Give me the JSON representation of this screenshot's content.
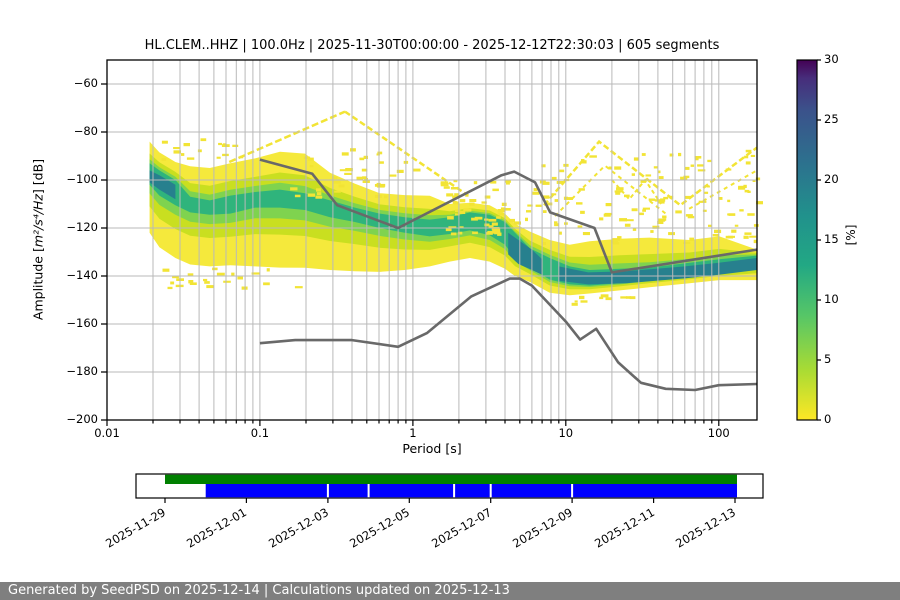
{
  "figure_title": "HL.CLEM..HHZ | 100.0Hz | 2025-11-30T00:00:00 - 2025-12-12T22:30:03 | 605 segments",
  "footer": {
    "text": "Generated by SeedPSD on 2025-12-14 | Calculations updated on 2025-12-13"
  },
  "axes": {
    "xlabel": "Period [s]",
    "ylabel_prefix": "Amplitude [",
    "ylabel_math": "m²/s⁴/Hz",
    "ylabel_suffix": "] [dB]",
    "x_tick_values": [
      0.01,
      0.1,
      1,
      10,
      100
    ],
    "x_tick_labels": [
      "0.01",
      "0.1",
      "1",
      "10",
      "100"
    ],
    "y_tick_values": [
      -60,
      -80,
      -100,
      -120,
      -140,
      -160,
      -180,
      -200
    ],
    "y_tick_labels": [
      "−60",
      "−80",
      "−100",
      "−120",
      "−140",
      "−160",
      "−180",
      "−200"
    ]
  },
  "colorbar": {
    "label": "[%]",
    "min": 0,
    "max": 30,
    "tick_values": [
      0,
      5,
      10,
      15,
      20,
      25,
      30
    ],
    "tick_labels": [
      "0",
      "5",
      "10",
      "15",
      "20",
      "25",
      "30"
    ],
    "gradient": [
      [
        0,
        "#fde725"
      ],
      [
        0.14,
        "#a8db34"
      ],
      [
        0.29,
        "#56c667"
      ],
      [
        0.43,
        "#22a884"
      ],
      [
        0.57,
        "#21918c"
      ],
      [
        0.71,
        "#2c728e"
      ],
      [
        0.86,
        "#3b528b"
      ],
      [
        0.95,
        "#472d7b"
      ],
      [
        1,
        "#440154"
      ]
    ]
  },
  "colors": {
    "band_outer": "#f5e93c",
    "band_mid": "#c9df20",
    "band_inner": "#7fd34f",
    "band_core": "#2fb47c",
    "hotspot": "#27808e",
    "speckle": "#f2e435",
    "model_line": "#696969",
    "grid": "#b9b9b9",
    "timeline_green": "#008000",
    "timeline_blue": "#0000ff",
    "footer_bg": "#7f7f7f"
  },
  "chart_data": {
    "type": "heatmap",
    "title": "HL.CLEM..HHZ | 100.0Hz | 2025-11-30T00:00:00 - 2025-12-12T22:30:03 | 605 segments",
    "station": "HL.CLEM..HHZ",
    "sampling_rate_hz": 100.0,
    "time_start": "2025-11-30T00:00:00",
    "time_end": "2025-12-12T22:30:03",
    "segments": 605,
    "xlabel": "Period [s]",
    "ylabel": "Amplitude [m²/s⁴/Hz] [dB]",
    "x_scale": "log",
    "x_range_s": [
      0.01,
      177.8
    ],
    "y_range_db": [
      -200,
      -50
    ],
    "colorbar_range_pct": [
      0,
      30
    ],
    "grid": true,
    "description": "PPSD probability histogram (viridis, yellow=low % to teal=high %) with Peterson NHNM/NLNM reference curves in gray.",
    "histogram": {
      "periods_s": [
        0.019,
        0.022,
        0.028,
        0.035,
        0.047,
        0.064,
        0.093,
        0.135,
        0.197,
        0.287,
        0.417,
        0.607,
        0.884,
        1.29,
        1.74,
        2.36,
        3.18,
        4.0,
        4.65,
        5.83,
        7.85,
        10.6,
        14.3,
        22.5,
        35.3,
        64.4,
        101,
        177.5
      ],
      "outer_top_db": [
        -84,
        -88.5,
        -92.5,
        -94.3,
        -95,
        -93,
        -91,
        -88.2,
        -89,
        -97,
        -101.5,
        -105.5,
        -106.3,
        -106.6,
        -110,
        -109.5,
        -110.5,
        -114,
        -118.2,
        -121.5,
        -125,
        -127,
        -125.5,
        -124.5,
        -124,
        -125,
        -123.5,
        -129
      ],
      "outer_bottom_db": [
        -122,
        -128,
        -132.5,
        -135.2,
        -136,
        -135.5,
        -136,
        -136.5,
        -136.6,
        -137.5,
        -138,
        -138.3,
        -137.5,
        -136,
        -134,
        -132.5,
        -134,
        -137,
        -140,
        -142.5,
        -147,
        -148,
        -147.3,
        -146,
        -144.7,
        -143,
        -141.7,
        -141.7
      ],
      "core_top_db": [
        -93,
        -96,
        -100,
        -107,
        -108.5,
        -106.5,
        -105,
        -104,
        -105.5,
        -108.5,
        -111.5,
        -114,
        -115.5,
        -116.5,
        -115.5,
        -113.5,
        -114.5,
        -117.5,
        -122,
        -128.5,
        -132.5,
        -136,
        -137.5,
        -137,
        -136.5,
        -134.5,
        -133,
        -131.5
      ],
      "core_bottom_db": [
        -102,
        -106.5,
        -110.5,
        -113.5,
        -114.5,
        -114,
        -111.5,
        -111.5,
        -112.5,
        -115.5,
        -117.5,
        -120,
        -122,
        -123.5,
        -122.5,
        -121,
        -123,
        -127,
        -132.5,
        -136.5,
        -141.5,
        -143.5,
        -144,
        -143,
        -141.5,
        -140,
        -138.5,
        -136.5
      ]
    },
    "hotspots": [
      {
        "periods_s": [
          4.2,
          4.9,
          6.0,
          7.0
        ],
        "top_db": [
          -122,
          -125,
          -129,
          -133
        ],
        "bottom_db": [
          -131,
          -135,
          -137.5,
          -139.5
        ]
      },
      {
        "periods_s": [
          0.019,
          0.022,
          0.028
        ],
        "top_db": [
          -96,
          -98,
          -102
        ],
        "bottom_db": [
          -101,
          -104,
          -108
        ]
      },
      {
        "periods_s": [
          9,
          14,
          25,
          60,
          100,
          177.5
        ],
        "top_db": [
          -136,
          -138.5,
          -138,
          -136,
          -134.5,
          -132.5
        ],
        "bottom_db": [
          -142,
          -143.5,
          -143,
          -141,
          -139.5,
          -137.5
        ]
      }
    ],
    "noise_models": {
      "nhnm": [
        [
          0.1,
          -91.5
        ],
        [
          0.22,
          -97.4
        ],
        [
          0.32,
          -110.5
        ],
        [
          0.8,
          -120
        ],
        [
          3.8,
          -98
        ],
        [
          4.6,
          -96.5
        ],
        [
          6.3,
          -101
        ],
        [
          7.9,
          -113.5
        ],
        [
          15.4,
          -120
        ],
        [
          20,
          -138.5
        ],
        [
          177.5,
          -129
        ]
      ],
      "nlnm": [
        [
          0.1,
          -168
        ],
        [
          0.17,
          -166.7
        ],
        [
          0.4,
          -166.7
        ],
        [
          0.8,
          -169.5
        ],
        [
          1.24,
          -163.7
        ],
        [
          2.4,
          -148.6
        ],
        [
          4.3,
          -141.1
        ],
        [
          5.0,
          -141.1
        ],
        [
          6.0,
          -144
        ],
        [
          10,
          -159
        ],
        [
          12.4,
          -166.5
        ],
        [
          15.8,
          -162
        ],
        [
          22,
          -176
        ],
        [
          31,
          -184.5
        ],
        [
          45,
          -187
        ],
        [
          70,
          -187.5
        ],
        [
          100,
          -185.5
        ],
        [
          177.5,
          -185
        ]
      ]
    },
    "streaks": [
      {
        "points": [
          [
            0.063,
            -92.5
          ],
          [
            0.36,
            -71.5
          ]
        ],
        "width": 2.5,
        "dash": "7 3"
      },
      {
        "points": [
          [
            0.36,
            -71.5
          ],
          [
            2.3,
            -106.5
          ]
        ],
        "width": 2.5,
        "dash": "6 3"
      },
      {
        "points": [
          [
            7.2,
            -110.5
          ],
          [
            16.5,
            -84
          ],
          [
            56,
            -110.5
          ],
          [
            177.5,
            -86.5
          ]
        ],
        "width": 2.5,
        "dash": "6 3"
      },
      {
        "points": [
          [
            8.5,
            -115
          ],
          [
            18,
            -94
          ],
          [
            45,
            -114
          ]
        ],
        "width": 2,
        "dash": "4 4"
      },
      {
        "points": [
          [
            20,
            -100
          ],
          [
            26,
            -108
          ],
          [
            33,
            -100
          ],
          [
            42,
            -110
          ]
        ],
        "width": 2,
        "dash": "4 3"
      },
      {
        "points": [
          [
            64,
            -112
          ],
          [
            177.5,
            -96
          ]
        ],
        "width": 2,
        "dash": "4 4"
      }
    ],
    "speckle_regions": [
      {
        "p": [
          1.5,
          5.0
        ],
        "db": [
          -100,
          -122
        ],
        "count": 55
      },
      {
        "p": [
          5.4,
          74
        ],
        "db": [
          -87.5,
          -127
        ],
        "count": 95
      },
      {
        "p": [
          74,
          177.5
        ],
        "db": [
          -86.7,
          -125
        ],
        "count": 35
      },
      {
        "p": [
          0.157,
          1.61
        ],
        "db": [
          -86.7,
          -106.7
        ],
        "count": 40
      },
      {
        "p": [
          0.019,
          0.074
        ],
        "db": [
          -81.7,
          -92.5
        ],
        "count": 16
      },
      {
        "p": [
          0.022,
          0.182
        ],
        "db": [
          -135.8,
          -145
        ],
        "count": 22
      },
      {
        "p": [
          8.5,
          30
        ],
        "db": [
          -147.5,
          -151.7
        ],
        "count": 10
      }
    ]
  },
  "timeline": {
    "date_labels": [
      "2025-11-29",
      "2025-12-01",
      "2025-12-03",
      "2025-12-05",
      "2025-12-07",
      "2025-12-09",
      "2025-12-11",
      "2025-12-13"
    ],
    "tick_day_offsets": [
      0,
      2,
      4,
      6,
      8,
      10,
      12,
      14
    ],
    "green_span_days": [
      0,
      14.05
    ],
    "blue_span_days": [
      1,
      14.05
    ],
    "gap_days": [
      4,
      5,
      7.1,
      8,
      10
    ]
  }
}
